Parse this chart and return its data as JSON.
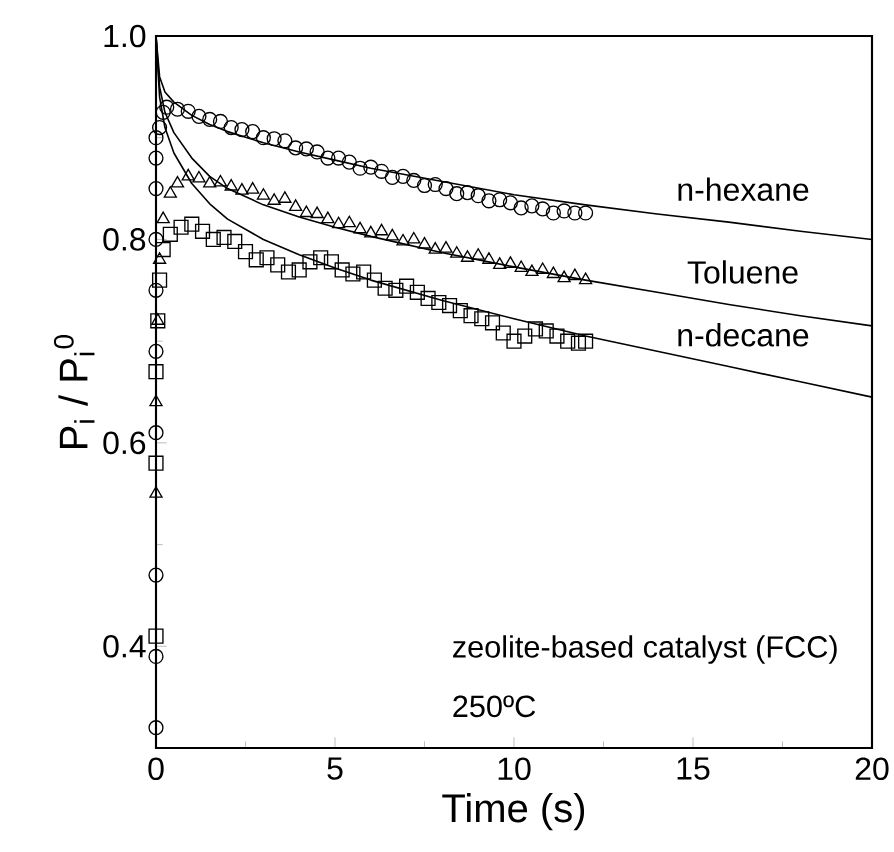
{
  "chart_data": {
    "type": "scatter",
    "xlabel": "Time (s)",
    "ylabel": "P$_{i}$ / P$_{i}$$^{0}$",
    "xlim": [
      0,
      20
    ],
    "ylim": [
      0.3,
      1.0
    ],
    "xticks": [
      0,
      5,
      10,
      15,
      20
    ],
    "yticks": [
      0.4,
      0.6,
      0.8,
      {
        "value": 1.0,
        "label": "1.0"
      }
    ],
    "grid": false,
    "legend": false,
    "annotations": [
      "zeolite-based catalyst (FCC)",
      "250ºC"
    ],
    "series": [
      {
        "marker": "circle",
        "color": "#000000",
        "x": [
          0,
          0,
          0,
          0,
          0,
          0,
          0,
          0,
          0,
          0,
          0.1,
          0.2,
          0.3,
          0.6,
          0.9,
          1.2,
          1.5,
          1.8,
          2.1,
          2.4,
          2.7,
          3.0,
          3.3,
          3.6,
          3.9,
          4.2,
          4.5,
          4.8,
          5.1,
          5.4,
          5.7,
          6.0,
          6.3,
          6.6,
          6.9,
          7.2,
          7.5,
          7.8,
          8.1,
          8.4,
          8.7,
          9.0,
          9.3,
          9.6,
          9.9,
          10.2,
          10.5,
          10.8,
          11.1,
          11.4,
          11.7,
          12.0
        ],
        "values": [
          0.32,
          0.39,
          0.47,
          0.61,
          0.69,
          0.75,
          0.8,
          0.85,
          0.88,
          0.9,
          0.91,
          0.925,
          0.93,
          0.928,
          0.926,
          0.921,
          0.918,
          0.916,
          0.91,
          0.908,
          0.906,
          0.9,
          0.899,
          0.897,
          0.89,
          0.889,
          0.886,
          0.88,
          0.88,
          0.876,
          0.87,
          0.871,
          0.867,
          0.861,
          0.862,
          0.858,
          0.853,
          0.854,
          0.85,
          0.845,
          0.846,
          0.843,
          0.838,
          0.839,
          0.836,
          0.831,
          0.833,
          0.83,
          0.826,
          0.828,
          0.826,
          0.826
        ]
      },
      {
        "marker": "triangle",
        "color": "#000000",
        "x": [
          0,
          0,
          0.05,
          0.1,
          0.2,
          0.4,
          0.6,
          0.9,
          1.2,
          1.5,
          1.8,
          2.1,
          2.4,
          2.7,
          3.0,
          3.3,
          3.6,
          3.9,
          4.2,
          4.5,
          4.8,
          5.1,
          5.4,
          5.7,
          6.0,
          6.3,
          6.6,
          6.9,
          7.2,
          7.5,
          7.8,
          8.1,
          8.4,
          8.7,
          9.0,
          9.3,
          9.6,
          9.9,
          10.2,
          10.5,
          10.8,
          11.1,
          11.4,
          11.7,
          12.0
        ],
        "values": [
          0.55,
          0.64,
          0.72,
          0.78,
          0.82,
          0.845,
          0.855,
          0.862,
          0.86,
          0.855,
          0.856,
          0.852,
          0.848,
          0.849,
          0.843,
          0.838,
          0.84,
          0.832,
          0.826,
          0.825,
          0.82,
          0.815,
          0.816,
          0.81,
          0.806,
          0.808,
          0.803,
          0.798,
          0.8,
          0.795,
          0.79,
          0.791,
          0.786,
          0.782,
          0.784,
          0.78,
          0.775,
          0.776,
          0.772,
          0.768,
          0.77,
          0.766,
          0.762,
          0.764,
          0.76
        ]
      },
      {
        "marker": "square",
        "color": "#000000",
        "x": [
          0,
          0,
          0,
          0.05,
          0.1,
          0.2,
          0.4,
          0.7,
          1.0,
          1.3,
          1.6,
          1.9,
          2.2,
          2.5,
          2.8,
          3.1,
          3.4,
          3.7,
          4.0,
          4.3,
          4.6,
          4.9,
          5.2,
          5.5,
          5.8,
          6.1,
          6.4,
          6.7,
          7.0,
          7.3,
          7.6,
          7.9,
          8.2,
          8.5,
          8.8,
          9.1,
          9.4,
          9.7,
          10.0,
          10.3,
          10.6,
          10.9,
          11.2,
          11.5,
          11.8,
          12.0
        ],
        "values": [
          0.41,
          0.58,
          0.67,
          0.72,
          0.76,
          0.79,
          0.805,
          0.812,
          0.815,
          0.808,
          0.8,
          0.802,
          0.798,
          0.788,
          0.78,
          0.782,
          0.775,
          0.768,
          0.77,
          0.778,
          0.782,
          0.778,
          0.77,
          0.766,
          0.768,
          0.76,
          0.752,
          0.75,
          0.754,
          0.748,
          0.742,
          0.738,
          0.735,
          0.73,
          0.725,
          0.722,
          0.718,
          0.708,
          0.7,
          0.705,
          0.712,
          0.71,
          0.705,
          0.7,
          0.698,
          0.7
        ]
      },
      {
        "type": "line",
        "name": "n-hexane",
        "marker": "none",
        "color": "#000000",
        "x": [
          0,
          0.1,
          0.25,
          0.5,
          1,
          1.5,
          2,
          3,
          4,
          5,
          6,
          8,
          10,
          12,
          14,
          16,
          18,
          20
        ],
        "values": [
          1.0,
          0.96,
          0.945,
          0.935,
          0.922,
          0.913,
          0.906,
          0.895,
          0.886,
          0.878,
          0.87,
          0.857,
          0.844,
          0.834,
          0.825,
          0.817,
          0.808,
          0.8
        ]
      },
      {
        "type": "line",
        "name": "Toluene",
        "marker": "none",
        "color": "#000000",
        "x": [
          0,
          0.1,
          0.25,
          0.5,
          1,
          1.5,
          2,
          3,
          4,
          5,
          6,
          8,
          10,
          12,
          14,
          16,
          18,
          20
        ],
        "values": [
          1.0,
          0.95,
          0.925,
          0.905,
          0.88,
          0.862,
          0.85,
          0.834,
          0.822,
          0.812,
          0.803,
          0.787,
          0.773,
          0.76,
          0.748,
          0.736,
          0.725,
          0.715
        ]
      },
      {
        "type": "line",
        "name": "n-decane",
        "marker": "none",
        "color": "#000000",
        "x": [
          0,
          0.1,
          0.25,
          0.5,
          1,
          1.5,
          2,
          3,
          4,
          5,
          6,
          8,
          10,
          12,
          14,
          16,
          18,
          20
        ],
        "values": [
          1.0,
          0.94,
          0.91,
          0.885,
          0.855,
          0.835,
          0.82,
          0.8,
          0.785,
          0.772,
          0.76,
          0.74,
          0.722,
          0.705,
          0.69,
          0.675,
          0.66,
          0.645
        ]
      }
    ]
  }
}
